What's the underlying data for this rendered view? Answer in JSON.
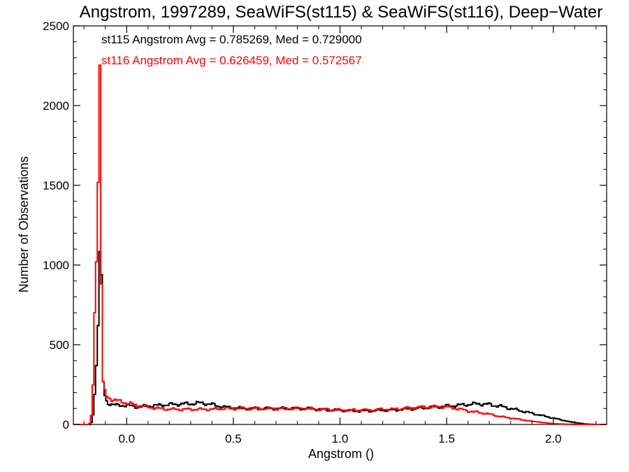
{
  "chart_data": {
    "type": "histogram",
    "title": "Angstrom, 1997289, SeaWiFS(st115) & SeaWiFS(st116), Deep−Water",
    "xlabel": "Angstrom ()",
    "ylabel": "Number of Observations",
    "xlim": [
      -0.25,
      2.25
    ],
    "ylim": [
      0,
      2500
    ],
    "x_ticks": [
      0.0,
      0.5,
      1.0,
      1.5,
      2.0
    ],
    "x_tick_labels": [
      "0.0",
      "0.5",
      "1.0",
      "1.5",
      "2.0"
    ],
    "y_ticks": [
      0,
      500,
      1000,
      1500,
      2000,
      2500
    ],
    "y_tick_labels": [
      "0",
      "500",
      "1000",
      "1500",
      "2000",
      "2500"
    ],
    "grid": false,
    "annotations": [
      {
        "text": "st115 Angstrom Avg = 0.785269, Med = 0.729000",
        "color": "#000000"
      },
      {
        "text": "st116 Angstrom Avg = 0.626459, Med = 0.572567",
        "color": "#ff0000"
      }
    ],
    "series": [
      {
        "name": "st115",
        "color": "#000000",
        "points": [
          [
            -0.25,
            0
          ],
          [
            -0.17,
            0
          ],
          [
            -0.16,
            30
          ],
          [
            -0.15,
            200
          ],
          [
            -0.14,
            420
          ],
          [
            -0.135,
            600
          ],
          [
            -0.13,
            700
          ],
          [
            -0.125,
            1180
          ],
          [
            -0.12,
            1100
          ],
          [
            -0.115,
            700
          ],
          [
            -0.11,
            260
          ],
          [
            -0.1,
            160
          ],
          [
            -0.09,
            135
          ],
          [
            -0.05,
            120
          ],
          [
            0.0,
            120
          ],
          [
            0.05,
            110
          ],
          [
            0.1,
            115
          ],
          [
            0.15,
            120
          ],
          [
            0.2,
            125
          ],
          [
            0.25,
            128
          ],
          [
            0.3,
            130
          ],
          [
            0.35,
            135
          ],
          [
            0.4,
            125
          ],
          [
            0.45,
            110
          ],
          [
            0.5,
            105
          ],
          [
            0.55,
            100
          ],
          [
            0.6,
            100
          ],
          [
            0.65,
            100
          ],
          [
            0.7,
            100
          ],
          [
            0.75,
            100
          ],
          [
            0.8,
            100
          ],
          [
            0.85,
            100
          ],
          [
            0.9,
            95
          ],
          [
            0.95,
            90
          ],
          [
            1.0,
            90
          ],
          [
            1.05,
            85
          ],
          [
            1.1,
            85
          ],
          [
            1.15,
            85
          ],
          [
            1.2,
            90
          ],
          [
            1.25,
            90
          ],
          [
            1.3,
            95
          ],
          [
            1.35,
            100
          ],
          [
            1.4,
            105
          ],
          [
            1.45,
            110
          ],
          [
            1.5,
            115
          ],
          [
            1.55,
            120
          ],
          [
            1.6,
            125
          ],
          [
            1.65,
            130
          ],
          [
            1.7,
            125
          ],
          [
            1.75,
            115
          ],
          [
            1.8,
            100
          ],
          [
            1.85,
            85
          ],
          [
            1.9,
            70
          ],
          [
            1.95,
            55
          ],
          [
            2.0,
            40
          ],
          [
            2.05,
            25
          ],
          [
            2.1,
            12
          ],
          [
            2.15,
            3
          ],
          [
            2.2,
            0
          ],
          [
            2.25,
            0
          ]
        ]
      },
      {
        "name": "st116",
        "color": "#ff0000",
        "points": [
          [
            -0.25,
            0
          ],
          [
            -0.18,
            0
          ],
          [
            -0.17,
            10
          ],
          [
            -0.16,
            120
          ],
          [
            -0.155,
            400
          ],
          [
            -0.15,
            700
          ],
          [
            -0.145,
            900
          ],
          [
            -0.14,
            1100
          ],
          [
            -0.135,
            1330
          ],
          [
            -0.13,
            2270
          ],
          [
            -0.125,
            2250
          ],
          [
            -0.12,
            1100
          ],
          [
            -0.115,
            550
          ],
          [
            -0.11,
            250
          ],
          [
            -0.1,
            190
          ],
          [
            -0.09,
            170
          ],
          [
            -0.05,
            150
          ],
          [
            0.0,
            135
          ],
          [
            0.05,
            120
          ],
          [
            0.1,
            110
          ],
          [
            0.15,
            100
          ],
          [
            0.2,
            95
          ],
          [
            0.25,
            95
          ],
          [
            0.3,
            95
          ],
          [
            0.35,
            95
          ],
          [
            0.4,
            95
          ],
          [
            0.45,
            100
          ],
          [
            0.5,
            100
          ],
          [
            0.55,
            100
          ],
          [
            0.6,
            100
          ],
          [
            0.65,
            100
          ],
          [
            0.7,
            100
          ],
          [
            0.75,
            100
          ],
          [
            0.8,
            100
          ],
          [
            0.85,
            100
          ],
          [
            0.9,
            95
          ],
          [
            0.95,
            95
          ],
          [
            1.0,
            90
          ],
          [
            1.05,
            90
          ],
          [
            1.1,
            90
          ],
          [
            1.15,
            90
          ],
          [
            1.2,
            95
          ],
          [
            1.25,
            95
          ],
          [
            1.3,
            100
          ],
          [
            1.35,
            105
          ],
          [
            1.4,
            110
          ],
          [
            1.45,
            110
          ],
          [
            1.5,
            110
          ],
          [
            1.55,
            100
          ],
          [
            1.6,
            85
          ],
          [
            1.65,
            75
          ],
          [
            1.7,
            65
          ],
          [
            1.75,
            50
          ],
          [
            1.8,
            40
          ],
          [
            1.85,
            30
          ],
          [
            1.9,
            20
          ],
          [
            1.95,
            12
          ],
          [
            2.0,
            5
          ],
          [
            2.05,
            2
          ],
          [
            2.1,
            0
          ],
          [
            2.25,
            0
          ]
        ]
      }
    ]
  }
}
